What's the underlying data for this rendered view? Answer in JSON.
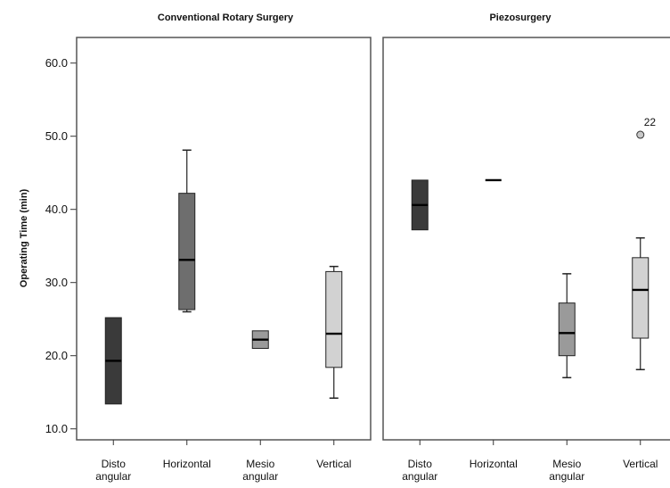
{
  "chart_data": {
    "type": "boxplot",
    "ylabel": "Operating  Time  (min)",
    "y_ticks": [
      "10.0",
      "20.0",
      "30.0",
      "40.0",
      "50.0",
      "60.0"
    ],
    "ylim": [
      8.5,
      63.5
    ],
    "grid": false,
    "panels": [
      {
        "title": "Conventional Rotary Surgery",
        "boxes": [
          {
            "category": "Disto angular",
            "label_lines": [
              "Disto",
              "angular"
            ],
            "min": 13.4,
            "q1": 13.4,
            "median": 19.3,
            "q3": 25.2,
            "max": 25.2,
            "color": "#3a3a3a"
          },
          {
            "category": "Horizontal",
            "label_lines": [
              "Horizontal"
            ],
            "min": 26.0,
            "q1": 26.3,
            "median": 33.1,
            "q3": 42.2,
            "max": 48.1,
            "color": "#6e6e6e"
          },
          {
            "category": "Mesio angular",
            "label_lines": [
              "Mesio",
              "angular"
            ],
            "min": 21.0,
            "q1": 21.0,
            "median": 22.2,
            "q3": 23.4,
            "max": 23.4,
            "color": "#9a9a9a"
          },
          {
            "category": "Vertical",
            "label_lines": [
              "Vertical"
            ],
            "min": 14.2,
            "q1": 18.4,
            "median": 23.0,
            "q3": 31.5,
            "max": 32.2,
            "color": "#d2d2d2"
          }
        ]
      },
      {
        "title": "Piezosurgery",
        "boxes": [
          {
            "category": "Disto angular",
            "label_lines": [
              "Disto",
              "angular"
            ],
            "min": 37.2,
            "q1": 37.2,
            "median": 40.6,
            "q3": 44.0,
            "max": 44.0,
            "color": "#3a3a3a"
          },
          {
            "category": "Horizontal",
            "label_lines": [
              "Horizontal"
            ],
            "min": 44.0,
            "q1": 44.0,
            "median": 44.0,
            "q3": 44.0,
            "max": 44.0,
            "color": "#6e6e6e"
          },
          {
            "category": "Mesio angular",
            "label_lines": [
              "Mesio",
              "angular"
            ],
            "min": 17.0,
            "q1": 20.0,
            "median": 23.1,
            "q3": 27.2,
            "max": 31.2,
            "color": "#9a9a9a"
          },
          {
            "category": "Vertical",
            "label_lines": [
              "Vertical"
            ],
            "min": 18.1,
            "q1": 22.4,
            "median": 29.0,
            "q3": 33.4,
            "max": 36.1,
            "color": "#d2d2d2",
            "outliers": [
              {
                "value": 50.2,
                "label": "22"
              }
            ]
          }
        ]
      }
    ]
  }
}
